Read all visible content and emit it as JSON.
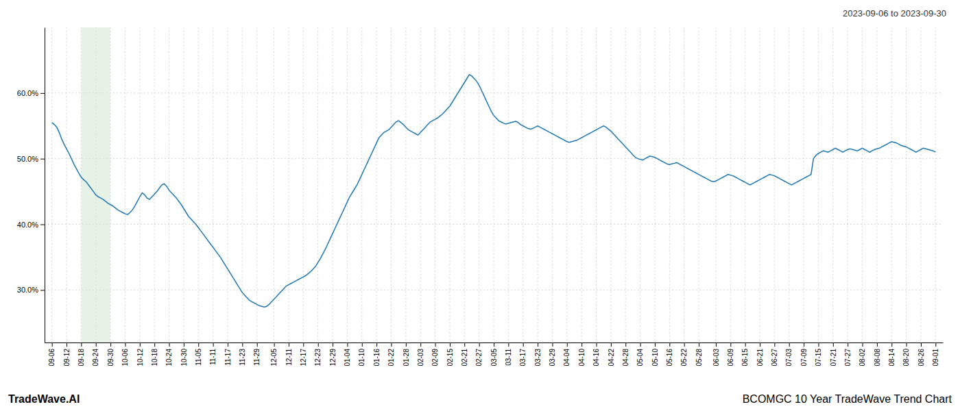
{
  "chart_data": {
    "type": "line",
    "title": "2023-09-06 to 2023-09-30",
    "annotations": [
      "TradeWave.AI",
      "BCOMGC 10 Year TradeWave Trend Chart"
    ],
    "color": "#1f77b4",
    "grid": true,
    "highlight": {
      "from": "09-18",
      "to": "09-30",
      "color": "#d6ead6"
    },
    "ylim": [
      0.22,
      0.7
    ],
    "yticks": [
      {
        "value": 0.3,
        "label": "30.0%"
      },
      {
        "value": 0.4,
        "label": "40.0%"
      },
      {
        "value": 0.5,
        "label": "50.0%"
      },
      {
        "value": 0.6,
        "label": "60.0%"
      }
    ],
    "categories": [
      "09-06",
      null,
      null,
      null,
      null,
      null,
      "09-12",
      null,
      null,
      null,
      null,
      null,
      "09-18",
      null,
      null,
      null,
      null,
      null,
      "09-24",
      null,
      null,
      null,
      null,
      null,
      "09-30",
      null,
      null,
      null,
      null,
      null,
      "10-06",
      null,
      null,
      null,
      null,
      null,
      "10-12",
      null,
      null,
      null,
      null,
      null,
      "10-18",
      null,
      null,
      null,
      null,
      null,
      "10-24",
      null,
      null,
      null,
      null,
      null,
      "10-30",
      null,
      null,
      null,
      null,
      null,
      "11-05",
      null,
      null,
      null,
      null,
      null,
      "11-11",
      null,
      null,
      null,
      null,
      null,
      "11-17",
      null,
      null,
      null,
      null,
      null,
      "11-23",
      null,
      null,
      null,
      null,
      null,
      "11-29",
      null,
      null,
      null,
      null,
      null,
      null,
      "12-05",
      null,
      null,
      null,
      null,
      null,
      "12-11",
      null,
      null,
      null,
      null,
      null,
      "12-17",
      null,
      null,
      null,
      null,
      null,
      "12-23",
      null,
      null,
      null,
      null,
      null,
      "12-29",
      null,
      null,
      null,
      null,
      null,
      "01-04",
      null,
      null,
      null,
      null,
      null,
      "01-10",
      null,
      null,
      null,
      null,
      null,
      "01-16",
      null,
      null,
      null,
      null,
      null,
      "01-22",
      null,
      null,
      null,
      null,
      null,
      "01-28",
      null,
      null,
      null,
      null,
      null,
      "02-03",
      null,
      null,
      null,
      null,
      null,
      "02-09",
      null,
      null,
      null,
      null,
      null,
      "02-15",
      null,
      null,
      null,
      null,
      null,
      "02-21",
      null,
      null,
      null,
      null,
      null,
      "02-27",
      null,
      null,
      null,
      null,
      null,
      "03-05",
      null,
      null,
      null,
      null,
      null,
      "03-11",
      null,
      null,
      null,
      null,
      null,
      "03-17",
      null,
      null,
      null,
      null,
      null,
      "03-23",
      null,
      null,
      null,
      null,
      null,
      "03-29",
      null,
      null,
      null,
      null,
      null,
      "04-04",
      null,
      null,
      null,
      null,
      null,
      "04-10",
      null,
      null,
      null,
      null,
      null,
      "04-16",
      null,
      null,
      null,
      null,
      null,
      "04-22",
      null,
      null,
      null,
      null,
      null,
      "04-28",
      null,
      null,
      null,
      null,
      null,
      "05-04",
      null,
      null,
      null,
      null,
      null,
      "05-10",
      null,
      null,
      null,
      null,
      null,
      "05-16",
      null,
      null,
      null,
      null,
      null,
      "05-22",
      null,
      null,
      null,
      null,
      null,
      "05-28",
      null,
      null,
      null,
      null,
      null,
      null,
      "06-03",
      null,
      null,
      null,
      null,
      null,
      "06-09",
      null,
      null,
      null,
      null,
      null,
      "06-15",
      null,
      null,
      null,
      null,
      null,
      "06-21",
      null,
      null,
      null,
      null,
      null,
      "06-27",
      null,
      null,
      null,
      null,
      null,
      "07-03",
      null,
      null,
      null,
      null,
      null,
      "07-09",
      null,
      null,
      null,
      null,
      null,
      "07-15",
      null,
      null,
      null,
      null,
      null,
      "07-21",
      null,
      null,
      null,
      null,
      null,
      "07-27",
      null,
      null,
      null,
      null,
      null,
      "08-02",
      null,
      null,
      null,
      null,
      null,
      "08-08",
      null,
      null,
      null,
      null,
      null,
      "08-14",
      null,
      null,
      null,
      null,
      null,
      "08-20",
      null,
      null,
      null,
      null,
      null,
      "08-26",
      null,
      null,
      null,
      null,
      null,
      "09-01"
    ],
    "values": [
      0.555,
      0.552,
      0.548,
      0.54,
      0.53,
      0.522,
      0.515,
      0.508,
      0.5,
      0.492,
      0.485,
      0.478,
      0.472,
      0.468,
      0.465,
      0.46,
      0.455,
      0.45,
      0.445,
      0.442,
      0.44,
      0.438,
      0.435,
      0.432,
      0.43,
      0.428,
      0.425,
      0.422,
      0.42,
      0.418,
      0.416,
      0.415,
      0.418,
      0.422,
      0.428,
      0.435,
      0.442,
      0.448,
      0.445,
      0.44,
      0.438,
      0.442,
      0.446,
      0.45,
      0.455,
      0.46,
      0.462,
      0.458,
      0.452,
      0.448,
      0.444,
      0.44,
      0.435,
      0.43,
      0.424,
      0.418,
      0.412,
      0.408,
      0.404,
      0.4,
      0.395,
      0.39,
      0.385,
      0.38,
      0.375,
      0.37,
      0.365,
      0.36,
      0.355,
      0.35,
      0.344,
      0.338,
      0.332,
      0.326,
      0.32,
      0.314,
      0.308,
      0.302,
      0.296,
      0.292,
      0.288,
      0.284,
      0.282,
      0.28,
      0.278,
      0.276,
      0.275,
      0.274,
      0.275,
      0.278,
      0.282,
      0.286,
      0.29,
      0.294,
      0.298,
      0.302,
      0.306,
      0.308,
      0.31,
      0.312,
      0.314,
      0.316,
      0.318,
      0.32,
      0.322,
      0.325,
      0.328,
      0.332,
      0.336,
      0.342,
      0.348,
      0.355,
      0.362,
      0.37,
      0.378,
      0.386,
      0.394,
      0.402,
      0.41,
      0.418,
      0.426,
      0.434,
      0.442,
      0.448,
      0.454,
      0.46,
      0.468,
      0.476,
      0.484,
      0.492,
      0.5,
      0.508,
      0.516,
      0.524,
      0.532,
      0.536,
      0.54,
      0.542,
      0.544,
      0.548,
      0.552,
      0.556,
      0.558,
      0.555,
      0.552,
      0.548,
      0.544,
      0.542,
      0.54,
      0.538,
      0.536,
      0.54,
      0.544,
      0.548,
      0.552,
      0.556,
      0.558,
      0.56,
      0.562,
      0.565,
      0.568,
      0.572,
      0.576,
      0.58,
      0.586,
      0.592,
      0.598,
      0.604,
      0.61,
      0.616,
      0.622,
      0.628,
      0.626,
      0.622,
      0.618,
      0.612,
      0.604,
      0.596,
      0.588,
      0.58,
      0.572,
      0.566,
      0.562,
      0.558,
      0.556,
      0.554,
      0.553,
      0.554,
      0.555,
      0.556,
      0.557,
      0.555,
      0.552,
      0.55,
      0.548,
      0.546,
      0.545,
      0.546,
      0.548,
      0.55,
      0.548,
      0.546,
      0.544,
      0.542,
      0.54,
      0.538,
      0.536,
      0.534,
      0.532,
      0.53,
      0.528,
      0.526,
      0.525,
      0.526,
      0.527,
      0.528,
      0.53,
      0.532,
      0.534,
      0.536,
      0.538,
      0.54,
      0.542,
      0.544,
      0.546,
      0.548,
      0.55,
      0.548,
      0.545,
      0.542,
      0.538,
      0.534,
      0.53,
      0.526,
      0.522,
      0.518,
      0.514,
      0.51,
      0.506,
      0.502,
      0.5,
      0.499,
      0.498,
      0.5,
      0.502,
      0.504,
      0.503,
      0.502,
      0.5,
      0.498,
      0.496,
      0.494,
      0.492,
      0.491,
      0.492,
      0.493,
      0.494,
      0.492,
      0.49,
      0.488,
      0.486,
      0.484,
      0.482,
      0.48,
      0.478,
      0.476,
      0.474,
      0.472,
      0.47,
      0.468,
      0.466,
      0.465,
      0.466,
      0.468,
      0.47,
      0.472,
      0.474,
      0.476,
      0.475,
      0.474,
      0.472,
      0.47,
      0.468,
      0.466,
      0.464,
      0.462,
      0.46,
      0.462,
      0.464,
      0.466,
      0.468,
      0.47,
      0.472,
      0.474,
      0.476,
      0.475,
      0.474,
      0.472,
      0.47,
      0.468,
      0.466,
      0.464,
      0.462,
      0.46,
      0.462,
      0.464,
      0.466,
      0.468,
      0.47,
      0.472,
      0.474,
      0.476,
      0.5,
      0.505,
      0.508,
      0.51,
      0.512,
      0.511,
      0.51,
      0.512,
      0.514,
      0.516,
      0.514,
      0.512,
      0.51,
      0.512,
      0.514,
      0.515,
      0.514,
      0.513,
      0.512,
      0.514,
      0.516,
      0.514,
      0.512,
      0.51,
      0.512,
      0.514,
      0.515,
      0.516,
      0.518,
      0.52,
      0.522,
      0.524,
      0.526,
      0.525,
      0.524,
      0.522,
      0.52,
      0.519,
      0.518,
      0.516,
      0.514,
      0.512,
      0.51,
      0.512,
      0.514,
      0.516,
      0.515,
      0.514,
      0.513,
      0.512,
      0.51
    ]
  }
}
